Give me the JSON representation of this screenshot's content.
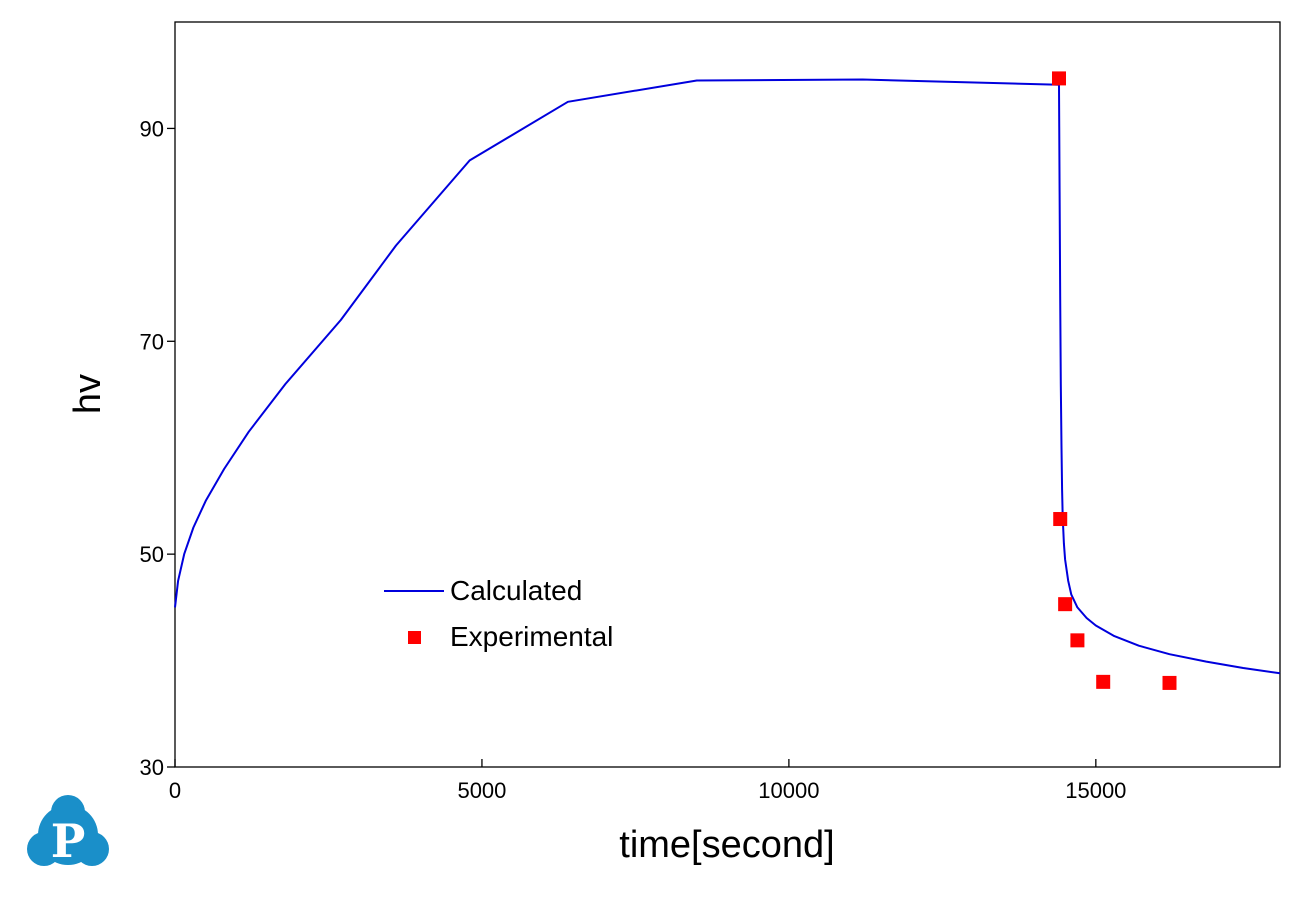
{
  "chart_data": {
    "type": "line",
    "xlabel": "time[second]",
    "ylabel": "hv",
    "xlim": [
      0,
      18000
    ],
    "ylim": [
      30,
      100
    ],
    "xticks": [
      0,
      5000,
      10000,
      15000
    ],
    "yticks": [
      30,
      50,
      70,
      90
    ],
    "xtick_labels": [
      "0",
      "5000",
      "10000",
      "15000"
    ],
    "ytick_labels": [
      "30",
      "50",
      "70",
      "90"
    ],
    "grid": false,
    "legend_position": "lower-left",
    "series": [
      {
        "name": "Calculated",
        "kind": "line",
        "color": "#0000dd",
        "x": [
          0,
          50,
          150,
          300,
          500,
          800,
          1200,
          1800,
          2700,
          3600,
          4800,
          6400,
          8500,
          11200,
          14400,
          14410,
          14420,
          14430,
          14440,
          14450,
          14460,
          14480,
          14500,
          14550,
          14600,
          14700,
          14850,
          15000,
          15300,
          15700,
          16200,
          16800,
          17400,
          18000
        ],
        "y": [
          45.0,
          47.5,
          50.0,
          52.5,
          55.0,
          58.0,
          61.5,
          66.0,
          72.0,
          79.0,
          87.0,
          92.5,
          94.5,
          94.6,
          94.1,
          84.0,
          74.0,
          66.0,
          60.0,
          56.0,
          53.5,
          51.0,
          49.5,
          47.5,
          46.2,
          45.0,
          44.0,
          43.3,
          42.3,
          41.4,
          40.6,
          39.9,
          39.3,
          38.8
        ]
      },
      {
        "name": "Experimental",
        "kind": "scatter",
        "color": "#ff0000",
        "x": [
          14400,
          14420,
          14500,
          14700,
          15120,
          16200
        ],
        "y": [
          94.7,
          53.3,
          45.3,
          41.9,
          38.0,
          37.9
        ]
      }
    ]
  },
  "logo": {
    "name": "P",
    "color": "#1a8fc9"
  }
}
